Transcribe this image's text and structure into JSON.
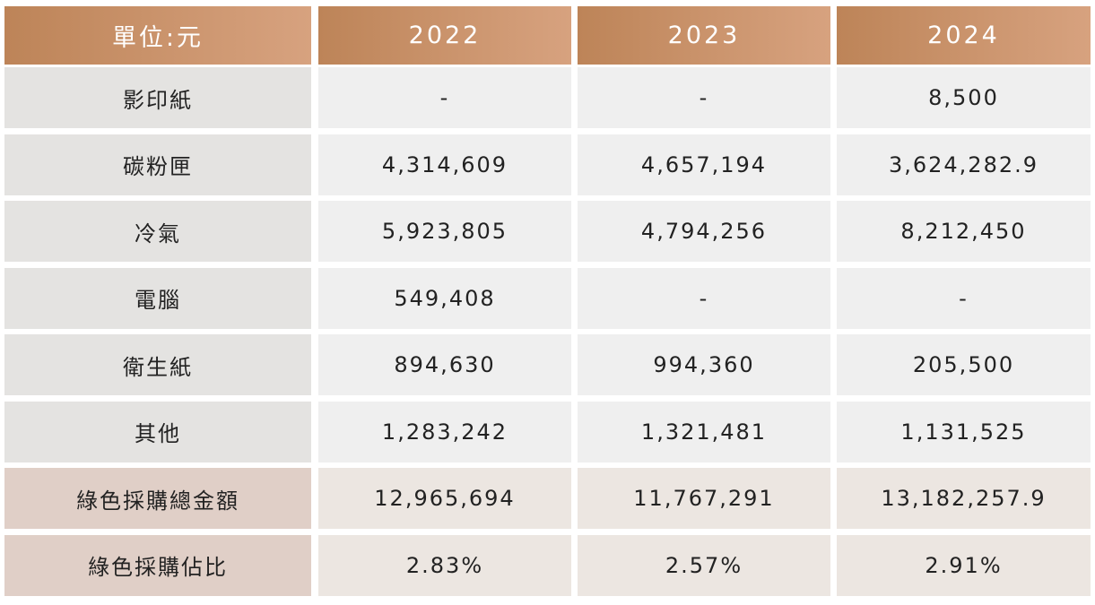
{
  "table": {
    "header": [
      "單位:元",
      "2022",
      "2023",
      "2024"
    ],
    "rows": [
      [
        "影印紙",
        "-",
        "-",
        "8,500"
      ],
      [
        "碳粉匣",
        "4,314,609",
        "4,657,194",
        "3,624,282.9"
      ],
      [
        "冷氣",
        "5,923,805",
        "4,794,256",
        "8,212,450"
      ],
      [
        "電腦",
        "549,408",
        "-",
        "-"
      ],
      [
        "衛生紙",
        "894,630",
        "994,360",
        "205,500"
      ],
      [
        "其他",
        "1,283,242",
        "1,321,481",
        "1,131,525"
      ],
      [
        "綠色採購總金額",
        "12,965,694",
        "11,767,291",
        "13,182,257.9"
      ],
      [
        "綠色採購佔比",
        "2.83%",
        "2.57%",
        "2.91%"
      ]
    ]
  }
}
